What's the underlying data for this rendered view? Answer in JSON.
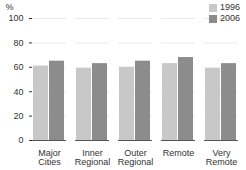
{
  "chart_data": {
    "type": "bar",
    "y_label": "%",
    "categories": [
      "Major Cities",
      "Inner Regional",
      "Outer Regional",
      "Remote",
      "Very Remote"
    ],
    "series": [
      {
        "name": "1996",
        "color": "#c8c8c8",
        "values": [
          61,
          59,
          60,
          63,
          59
        ]
      },
      {
        "name": "2006",
        "color": "#8c8c8c",
        "values": [
          65,
          63,
          65,
          68,
          63
        ]
      }
    ],
    "ylim": [
      0,
      100
    ],
    "yticks": [
      0,
      20,
      40,
      60,
      80,
      100
    ],
    "grid": true,
    "legend": "top-right"
  }
}
